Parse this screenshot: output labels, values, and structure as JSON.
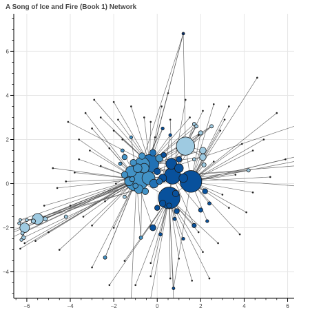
{
  "chart_data": {
    "type": "scatter",
    "subtype": "network-graph",
    "title": "A Song of Ice and Fire (Book 1) Network",
    "xlabel": "",
    "ylabel": "",
    "xlim": [
      -6.6,
      6.3
    ],
    "ylim": [
      -5.2,
      7.7
    ],
    "x_ticks": [
      -6,
      -4,
      -2,
      0,
      2,
      4,
      6
    ],
    "y_ticks": [
      -4,
      -2,
      0,
      2,
      4,
      6
    ],
    "x_tick_labels": [
      "−6",
      "−4",
      "−2",
      "0",
      "2",
      "4",
      "6"
    ],
    "y_tick_labels": [
      "−4",
      "−2",
      "0",
      "2",
      "4",
      "6"
    ],
    "grid": true,
    "legend": "none",
    "colors": {
      "light": "#9ecae1",
      "mid": "#4292c6",
      "dark": "#2171b5",
      "darker": "#08519c",
      "darkest": "#08306b",
      "edge": "#555555",
      "grid": "#e6e6e6"
    },
    "nodes": [
      {
        "x": -0.95,
        "y": 0.2,
        "r": 0.55,
        "c": "mid"
      },
      {
        "x": -0.7,
        "y": 0.85,
        "r": 0.35,
        "c": "mid"
      },
      {
        "x": -0.35,
        "y": 0.9,
        "r": 0.42,
        "c": "dark"
      },
      {
        "x": -0.4,
        "y": 0.25,
        "r": 0.3,
        "c": "mid"
      },
      {
        "x": -1.2,
        "y": 0.55,
        "r": 0.25,
        "c": "mid"
      },
      {
        "x": -0.85,
        "y": -0.25,
        "r": 0.2,
        "c": "mid"
      },
      {
        "x": -0.15,
        "y": 0.0,
        "r": 0.2,
        "c": "dark"
      },
      {
        "x": -0.9,
        "y": 0.7,
        "r": 0.2,
        "c": "mid"
      },
      {
        "x": -0.55,
        "y": -0.35,
        "r": 0.15,
        "c": "mid"
      },
      {
        "x": -1.3,
        "y": 0.1,
        "r": 0.2,
        "c": "mid"
      },
      {
        "x": -0.6,
        "y": 0.7,
        "r": 0.22,
        "c": "mid"
      },
      {
        "x": -1.1,
        "y": 0.95,
        "r": 0.15,
        "c": "mid"
      },
      {
        "x": 0.1,
        "y": 0.1,
        "r": 0.14,
        "c": "dark"
      },
      {
        "x": -1.5,
        "y": 0.4,
        "r": 0.15,
        "c": "mid"
      },
      {
        "x": -1.0,
        "y": -0.1,
        "r": 0.12,
        "c": "mid"
      },
      {
        "x": -1.15,
        "y": 0.2,
        "r": 0.12,
        "c": "mid"
      },
      {
        "x": -1.5,
        "y": 1.2,
        "r": 0.12,
        "c": "mid"
      },
      {
        "x": -0.7,
        "y": 1.25,
        "r": 0.15,
        "c": "mid"
      },
      {
        "x": -0.2,
        "y": 1.4,
        "r": 0.15,
        "c": "dark"
      },
      {
        "x": 0.1,
        "y": 1.15,
        "r": 0.17,
        "c": "mid"
      },
      {
        "x": 0.65,
        "y": 0.9,
        "r": 0.25,
        "c": "darker"
      },
      {
        "x": 0.7,
        "y": 0.35,
        "r": 0.38,
        "c": "darker"
      },
      {
        "x": 1.55,
        "y": 0.1,
        "r": 0.5,
        "c": "darker"
      },
      {
        "x": 0.55,
        "y": -0.65,
        "r": 0.5,
        "c": "darker"
      },
      {
        "x": 0.25,
        "y": 0.25,
        "r": 0.18,
        "c": "darker"
      },
      {
        "x": 1.0,
        "y": 0.7,
        "r": 0.2,
        "c": "darker"
      },
      {
        "x": 1.2,
        "y": 0.25,
        "r": 0.2,
        "c": "darker"
      },
      {
        "x": 0.25,
        "y": -0.9,
        "r": 0.15,
        "c": "darker"
      },
      {
        "x": 0.85,
        "y": -0.45,
        "r": 0.15,
        "c": "darker"
      },
      {
        "x": 0.55,
        "y": -1.0,
        "r": 0.12,
        "c": "darker"
      },
      {
        "x": 0.0,
        "y": -1.1,
        "r": 0.12,
        "c": "darker"
      },
      {
        "x": 0.9,
        "y": -1.25,
        "r": 0.12,
        "c": "darker"
      },
      {
        "x": 1.0,
        "y": 1.1,
        "r": 0.13,
        "c": "darker"
      },
      {
        "x": 0.3,
        "y": 1.3,
        "r": 0.12,
        "c": "darker"
      },
      {
        "x": 0.0,
        "y": 0.55,
        "r": 0.15,
        "c": "darker"
      },
      {
        "x": 1.3,
        "y": 1.7,
        "r": 0.42,
        "c": "light"
      },
      {
        "x": 2.1,
        "y": 1.5,
        "r": 0.15,
        "c": "light"
      },
      {
        "x": 2.1,
        "y": 1.2,
        "r": 0.15,
        "c": "light"
      },
      {
        "x": 2.15,
        "y": 0.85,
        "r": 0.1,
        "c": "light"
      },
      {
        "x": 2.0,
        "y": 2.3,
        "r": 0.1,
        "c": "light"
      },
      {
        "x": 1.7,
        "y": 2.7,
        "r": 0.08,
        "c": "light"
      },
      {
        "x": 1.8,
        "y": 2.6,
        "r": 0.08,
        "c": "light"
      },
      {
        "x": 2.5,
        "y": 2.6,
        "r": 0.08,
        "c": "light"
      },
      {
        "x": 1.7,
        "y": 1.1,
        "r": 0.08,
        "c": "light"
      },
      {
        "x": -5.5,
        "y": -1.6,
        "r": 0.25,
        "c": "light"
      },
      {
        "x": -6.1,
        "y": -2.0,
        "r": 0.22,
        "c": "light"
      },
      {
        "x": -5.7,
        "y": -1.7,
        "r": 0.1,
        "c": "light"
      },
      {
        "x": -5.15,
        "y": -1.6,
        "r": 0.1,
        "c": "light"
      },
      {
        "x": -6.15,
        "y": -2.45,
        "r": 0.09,
        "c": "light"
      },
      {
        "x": -6.2,
        "y": -2.25,
        "r": 0.08,
        "c": "light"
      },
      {
        "x": -6.35,
        "y": -1.8,
        "r": 0.07,
        "c": "light"
      },
      {
        "x": -6.25,
        "y": -2.55,
        "r": 0.07,
        "c": "light"
      },
      {
        "x": -6.0,
        "y": -1.65,
        "r": 0.07,
        "c": "light"
      },
      {
        "x": -6.3,
        "y": -1.65,
        "r": 0.06,
        "c": "light"
      },
      {
        "x": -4.2,
        "y": -1.5,
        "r": 0.08,
        "c": "light"
      },
      {
        "x": -1.5,
        "y": -0.6,
        "r": 0.08,
        "c": "light"
      },
      {
        "x": -1.6,
        "y": 1.5,
        "r": 0.08,
        "c": "mid"
      },
      {
        "x": -1.7,
        "y": 0.9,
        "r": 0.08,
        "c": "mid"
      },
      {
        "x": -0.75,
        "y": -2.45,
        "r": 0.08,
        "c": "mid"
      },
      {
        "x": -2.4,
        "y": -3.35,
        "r": 0.08,
        "c": "mid"
      },
      {
        "x": -1.2,
        "y": 2.1,
        "r": 0.07,
        "c": "mid"
      },
      {
        "x": 4.2,
        "y": 0.6,
        "r": 0.08,
        "c": "light"
      },
      {
        "x": 2.2,
        "y": -0.35,
        "r": 0.12,
        "c": "darker"
      },
      {
        "x": 2.0,
        "y": -1.2,
        "r": 0.1,
        "c": "darker"
      },
      {
        "x": 2.4,
        "y": -0.9,
        "r": 0.08,
        "c": "darker"
      },
      {
        "x": 1.7,
        "y": -1.9,
        "r": 0.1,
        "c": "darker"
      },
      {
        "x": -0.2,
        "y": -2.0,
        "r": 0.14,
        "c": "darker"
      },
      {
        "x": 0.15,
        "y": -2.3,
        "r": 0.08,
        "c": "darker"
      },
      {
        "x": 0.8,
        "y": -1.6,
        "r": 0.08,
        "c": "darker"
      },
      {
        "x": 1.2,
        "y": -2.5,
        "r": 0.07,
        "c": "darker"
      },
      {
        "x": 2.3,
        "y": -1.7,
        "r": 0.07,
        "c": "darker"
      },
      {
        "x": 0.25,
        "y": 2.5,
        "r": 0.07,
        "c": "darker"
      },
      {
        "x": 0.6,
        "y": 2.2,
        "r": 0.07,
        "c": "darker"
      },
      {
        "x": 0.75,
        "y": -4.75,
        "r": 0.06,
        "c": "darker"
      },
      {
        "x": 1.2,
        "y": 6.8,
        "r": 0.05,
        "c": "darkest"
      }
    ],
    "edges": [
      [
        0,
        1
      ],
      [
        0,
        2
      ],
      [
        0,
        3
      ],
      [
        0,
        4
      ],
      [
        0,
        5
      ],
      [
        0,
        6
      ],
      [
        0,
        7
      ],
      [
        0,
        9
      ],
      [
        0,
        10
      ],
      [
        0,
        20
      ],
      [
        0,
        21
      ],
      [
        0,
        22
      ],
      [
        0,
        23
      ],
      [
        0,
        35
      ],
      [
        0,
        44
      ],
      [
        0,
        45
      ],
      [
        0,
        46
      ],
      [
        0,
        47
      ],
      [
        0,
        55
      ],
      [
        0,
        56
      ],
      [
        0,
        57
      ],
      [
        0,
        58
      ],
      [
        0,
        59
      ],
      [
        0,
        60
      ],
      [
        0,
        61
      ],
      [
        0,
        66
      ],
      [
        0,
        71
      ],
      [
        0,
        74
      ],
      [
        0,
        49
      ],
      [
        0,
        53
      ],
      [
        2,
        20
      ],
      [
        2,
        21
      ],
      [
        2,
        22
      ],
      [
        2,
        35
      ],
      [
        2,
        36
      ],
      [
        2,
        37
      ],
      [
        2,
        71
      ],
      [
        2,
        72
      ],
      [
        2,
        74
      ],
      [
        2,
        40
      ],
      [
        2,
        41
      ],
      [
        2,
        42
      ],
      [
        21,
        22
      ],
      [
        21,
        23
      ],
      [
        21,
        35
      ],
      [
        21,
        62
      ],
      [
        21,
        63
      ],
      [
        21,
        65
      ],
      [
        21,
        67
      ],
      [
        22,
        23
      ],
      [
        22,
        35
      ],
      [
        22,
        36
      ],
      [
        22,
        38
      ],
      [
        22,
        61
      ],
      [
        22,
        62
      ],
      [
        22,
        64
      ],
      [
        22,
        70
      ],
      [
        22,
        73
      ],
      [
        22,
        39
      ],
      [
        23,
        29
      ],
      [
        23,
        30
      ],
      [
        23,
        31
      ],
      [
        23,
        66
      ],
      [
        23,
        68
      ],
      [
        23,
        69
      ],
      [
        23,
        73
      ],
      [
        23,
        65
      ],
      [
        35,
        36
      ],
      [
        35,
        37
      ],
      [
        35,
        39
      ],
      [
        35,
        40
      ],
      [
        35,
        41
      ],
      [
        35,
        42
      ],
      [
        35,
        74
      ],
      [
        3,
        44
      ],
      [
        3,
        48
      ],
      [
        5,
        46
      ],
      [
        5,
        50
      ],
      [
        1,
        59
      ],
      [
        1,
        58
      ],
      [
        44,
        46
      ],
      [
        44,
        47
      ],
      [
        44,
        52
      ],
      [
        44,
        53
      ],
      [
        45,
        48
      ],
      [
        45,
        49
      ],
      [
        45,
        51
      ],
      [
        45,
        50
      ],
      [
        6,
        61
      ],
      [
        20,
        42
      ],
      [
        20,
        41
      ],
      [
        24,
        72
      ],
      [
        23,
        58
      ]
    ],
    "endpoints": [
      [
        -3.0,
        2.5
      ],
      [
        -3.6,
        2.0
      ],
      [
        -4.1,
        2.8
      ],
      [
        -3.3,
        3.2
      ],
      [
        -2.9,
        3.8
      ],
      [
        -2.0,
        3.7
      ],
      [
        -1.2,
        3.5
      ],
      [
        -0.6,
        3.0
      ],
      [
        -0.3,
        2.8
      ],
      [
        0.6,
        2.9
      ],
      [
        1.5,
        3.0
      ],
      [
        2.1,
        3.3
      ],
      [
        2.6,
        3.6
      ],
      [
        3.3,
        3.5
      ],
      [
        4.6,
        4.8
      ],
      [
        3.9,
        1.8
      ],
      [
        4.4,
        1.5
      ],
      [
        5.5,
        3.2
      ],
      [
        4.4,
        -0.4
      ],
      [
        5.9,
        1.1
      ],
      [
        3.3,
        -1.1
      ],
      [
        4.1,
        -1.3
      ],
      [
        3.8,
        -2.3
      ],
      [
        2.8,
        -2.7
      ],
      [
        2.1,
        -3.1
      ],
      [
        1.6,
        -4.4
      ],
      [
        0.6,
        -4.3
      ],
      [
        -0.3,
        -3.6
      ],
      [
        -1.5,
        -3.5
      ],
      [
        -2.0,
        -2.0
      ],
      [
        -3.0,
        -1.9
      ],
      [
        -3.4,
        -1.5
      ],
      [
        -4.0,
        -1.0
      ],
      [
        -4.6,
        -0.2
      ],
      [
        -4.2,
        0.1
      ],
      [
        -3.8,
        0.5
      ],
      [
        -4.8,
        0.7
      ],
      [
        -3.6,
        1.1
      ],
      [
        -2.6,
        0.8
      ],
      [
        -3.1,
        1.5
      ],
      [
        -2.0,
        2.4
      ],
      [
        -2.2,
        1.6
      ],
      [
        -1.9,
        0.0
      ],
      [
        -2.4,
        -0.8
      ],
      [
        1.3,
        3.8
      ],
      [
        0.5,
        4.1
      ],
      [
        2.9,
        2.4
      ],
      [
        3.6,
        0.4
      ],
      [
        5.2,
        0.3
      ],
      [
        2.6,
        1.0
      ],
      [
        -4.5,
        -3.0
      ],
      [
        -5.0,
        -2.2
      ],
      [
        -5.6,
        -2.6
      ],
      [
        -5.2,
        -1.0
      ],
      [
        -6.3,
        -2.95
      ],
      [
        -6.1,
        -2.7
      ],
      [
        -3.0,
        -3.8
      ],
      [
        -1.0,
        -4.6
      ],
      [
        1.9,
        -2.2
      ],
      [
        3.0,
        -0.5
      ],
      [
        0.2,
        3.5
      ],
      [
        -0.1,
        2.1
      ],
      [
        -1.6,
        2.0
      ],
      [
        0.9,
        1.6
      ],
      [
        1.9,
        2.2
      ],
      [
        3.1,
        2.9
      ],
      [
        -2.6,
        3.0
      ],
      [
        -1.8,
        2.9
      ],
      [
        4.9,
        2.0
      ],
      [
        -0.3,
        -4.2
      ],
      [
        1.0,
        -3.4
      ],
      [
        2.4,
        -4.3
      ],
      [
        -2.2,
        -4.6
      ]
    ],
    "edge_to_border": [
      [
        0,
        6.3,
        2.6
      ],
      [
        22,
        6.3,
        1.0
      ],
      [
        22,
        6.3,
        1.2
      ],
      [
        21,
        6.3,
        0.8
      ],
      [
        0,
        -6.6,
        -2.4
      ],
      [
        0,
        -6.6,
        -2.2
      ],
      [
        3,
        -6.6,
        -2.1
      ],
      [
        0,
        -1.2,
        -5.2
      ],
      [
        23,
        0.75,
        -5.2
      ],
      [
        23,
        -0.3,
        -5.2
      ],
      [
        2,
        1.2,
        6.8
      ],
      [
        21,
        6.3,
        -0.1
      ]
    ]
  }
}
